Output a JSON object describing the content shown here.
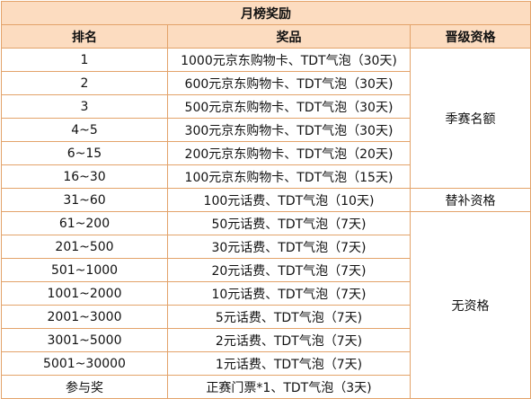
{
  "table": {
    "title": "月榜奖励",
    "headers": [
      "排名",
      "奖品",
      "晋级资格"
    ],
    "rows": [
      {
        "rank": "1",
        "prize": "1000元京东购物卡、TDT气泡（30天)"
      },
      {
        "rank": "2",
        "prize": "600元京东购物卡、TDT气泡（30天)"
      },
      {
        "rank": "3",
        "prize": "500元京东购物卡、TDT气泡（30天)"
      },
      {
        "rank": "4~5",
        "prize": "300元京东购物卡、TDT气泡（30天)"
      },
      {
        "rank": "6~15",
        "prize": "200元京东购物卡、TDT气泡（20天)"
      },
      {
        "rank": "16~30",
        "prize": "100元京东购物卡、TDT气泡（15天)"
      },
      {
        "rank": "31~60",
        "prize": "100元话费、TDT气泡（10天)"
      },
      {
        "rank": "61~200",
        "prize": "50元话费、TDT气泡（7天)"
      },
      {
        "rank": "201~500",
        "prize": "30元话费、TDT气泡（7天)"
      },
      {
        "rank": "501~1000",
        "prize": "20元话费、TDT气泡（7天)"
      },
      {
        "rank": "1001~2000",
        "prize": "10元话费、TDT气泡（7天)"
      },
      {
        "rank": "2001~3000",
        "prize": "5元话费、TDT气泡（7天)"
      },
      {
        "rank": "3001~5000",
        "prize": "2元话费、TDT气泡（7天)"
      },
      {
        "rank": "5001~30000",
        "prize": "1元话费、TDT气泡（7天)"
      },
      {
        "rank": "参与奖",
        "prize": "正赛门票*1、TDT气泡（3天)"
      }
    ],
    "qualifications": [
      {
        "label": "季赛名额",
        "rowspan": 6
      },
      {
        "label": "替补资格",
        "rowspan": 1
      },
      {
        "label": "无资格",
        "rowspan": 8
      }
    ]
  },
  "colors": {
    "header_bg": "#fcdcc0",
    "border": "#e3a36a"
  }
}
